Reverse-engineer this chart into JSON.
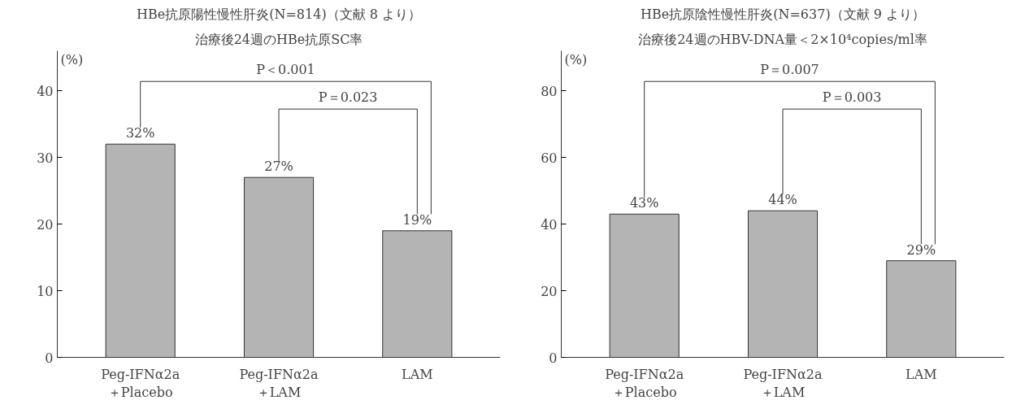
{
  "chart_data": [
    {
      "type": "bar",
      "title": "HBe抗原陽性慢性肝炎(N=814)（文献 8 より）",
      "subtitle": "治療後24週のHBe抗原SC率",
      "ylabel": "(%)",
      "categories": [
        "Peg-IFNα2a\n＋Placebo",
        "Peg-IFNα2a\n＋LAM",
        "LAM"
      ],
      "values": [
        32,
        27,
        19
      ],
      "value_labels": [
        "32%",
        "27%",
        "19%"
      ],
      "color": "#b4b4b4",
      "ylim": [
        0,
        46
      ],
      "yticks": [
        0,
        10,
        20,
        30,
        40
      ],
      "grid": false,
      "annotations": [
        "P＜0.001",
        "P＝0.023"
      ]
    },
    {
      "type": "bar",
      "title": "HBe抗原陰性慢性肝炎(N=637)（文献 9 より）",
      "subtitle": "治療後24週のHBV-DNA量＜2×10⁴copies/ml率",
      "ylabel": "(%)",
      "categories": [
        "Peg-IFNα2a\n＋Placebo",
        "Peg-IFNα2a\n＋LAM",
        "LAM"
      ],
      "values": [
        43,
        44,
        29
      ],
      "value_labels": [
        "43%",
        "44%",
        "29%"
      ],
      "color": "#b4b4b4",
      "ylim": [
        0,
        92
      ],
      "yticks": [
        0,
        20,
        40,
        60,
        80
      ],
      "grid": false,
      "annotations": [
        "P＝0.007",
        "P＝0.003"
      ]
    }
  ]
}
